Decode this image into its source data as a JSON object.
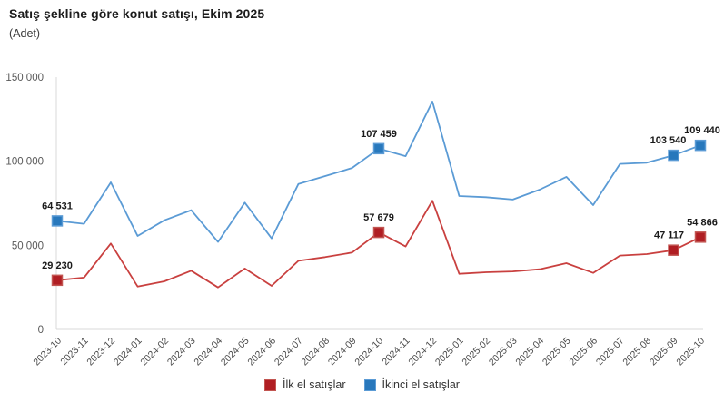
{
  "header": {
    "title": "Satış şekline göre konut satışı, Ekim 2025",
    "subtitle": "(Adet)"
  },
  "chart_data": {
    "type": "line",
    "title": "Satış şekline göre konut satışı, Ekim 2025",
    "unit": "Adet",
    "ylim": [
      0,
      150000
    ],
    "grid": false,
    "legend_position": "bottom",
    "axis_color": "#d9d9d9",
    "x": [
      "2023-10",
      "2023-11",
      "2023-12",
      "2024-01",
      "2024-02",
      "2024-03",
      "2024-04",
      "2024-05",
      "2024-06",
      "2024-07",
      "2024-08",
      "2024-09",
      "2024-10",
      "2024-11",
      "2024-12",
      "2025-01",
      "2025-02",
      "2025-03",
      "2025-04",
      "2025-05",
      "2025-06",
      "2025-07",
      "2025-08",
      "2025-09",
      "2025-10"
    ],
    "y_ticks": [
      {
        "value": 150000,
        "label": "150 000"
      },
      {
        "value": 100000,
        "label": "100 000"
      },
      {
        "value": 50000,
        "label": "50 000"
      },
      {
        "value": 0,
        "label": "0"
      }
    ],
    "series": [
      {
        "name": "İlk el satışlar",
        "line_color": "#c9403f",
        "marker_color": "#b01e23",
        "marker_border": "#c25551",
        "values": [
          29230,
          30800,
          51100,
          25500,
          28600,
          34900,
          25000,
          36200,
          25900,
          40800,
          43000,
          45700,
          57679,
          49300,
          76500,
          33100,
          34000,
          34500,
          35800,
          39400,
          33600,
          43900,
          44800,
          47117,
          54866
        ],
        "labeled_points": [
          {
            "index": 0,
            "label": "29 230",
            "dx": 0
          },
          {
            "index": 12,
            "label": "57 679",
            "dx": 0
          },
          {
            "index": 23,
            "label": "47 117",
            "dx": -5
          },
          {
            "index": 24,
            "label": "54 866",
            "dx": 2
          }
        ]
      },
      {
        "name": "İkinci el satışlar",
        "line_color": "#5b9bd5",
        "marker_color": "#2878bc",
        "marker_border": "#5b9bd5",
        "values": [
          64531,
          62800,
          87400,
          55600,
          64900,
          70900,
          52000,
          75400,
          54100,
          86500,
          91200,
          96000,
          107459,
          103000,
          135500,
          79300,
          78600,
          77200,
          83100,
          90700,
          73900,
          98400,
          99100,
          103540,
          109440
        ],
        "labeled_points": [
          {
            "index": 0,
            "label": "64 531",
            "dx": 0
          },
          {
            "index": 12,
            "label": "107 459",
            "dx": 0
          },
          {
            "index": 23,
            "label": "103 540",
            "dx": -6
          },
          {
            "index": 24,
            "label": "109 440",
            "dx": 2
          }
        ]
      }
    ]
  }
}
